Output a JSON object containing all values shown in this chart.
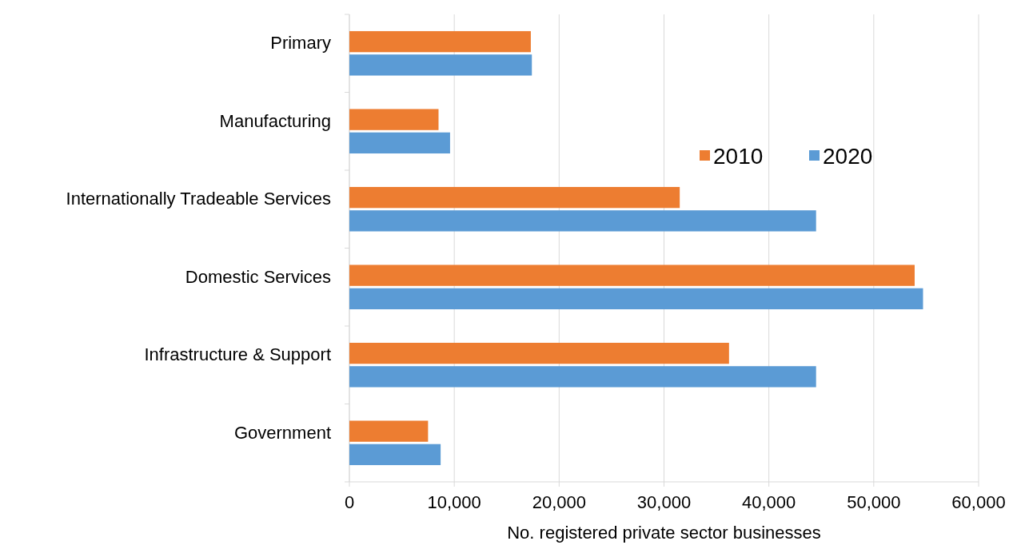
{
  "chart_data": {
    "type": "bar",
    "orientation": "horizontal",
    "xlabel": "No. registered private sector businesses",
    "categories": [
      "Primary",
      "Manufacturing",
      "Internationally Tradeable Services",
      "Domestic Services",
      "Infrastructure & Support",
      "Government"
    ],
    "series": [
      {
        "name": "2010",
        "color": "#ed7d31",
        "values": [
          17300,
          8500,
          31500,
          53900,
          36200,
          7500
        ]
      },
      {
        "name": "2020",
        "color": "#5b9bd5",
        "values": [
          17400,
          9600,
          44500,
          54700,
          44500,
          8700
        ]
      }
    ],
    "xlim": [
      0,
      60000
    ],
    "xticks": [
      {
        "value": 0,
        "label": "0"
      },
      {
        "value": 10000,
        "label": "10,000"
      },
      {
        "value": 20000,
        "label": "20,000"
      },
      {
        "value": 30000,
        "label": "30,000"
      },
      {
        "value": 40000,
        "label": "40,000"
      },
      {
        "value": 50000,
        "label": "50,000"
      },
      {
        "value": 60000,
        "label": "60,000"
      }
    ],
    "grid": "x",
    "legend": "top right"
  }
}
